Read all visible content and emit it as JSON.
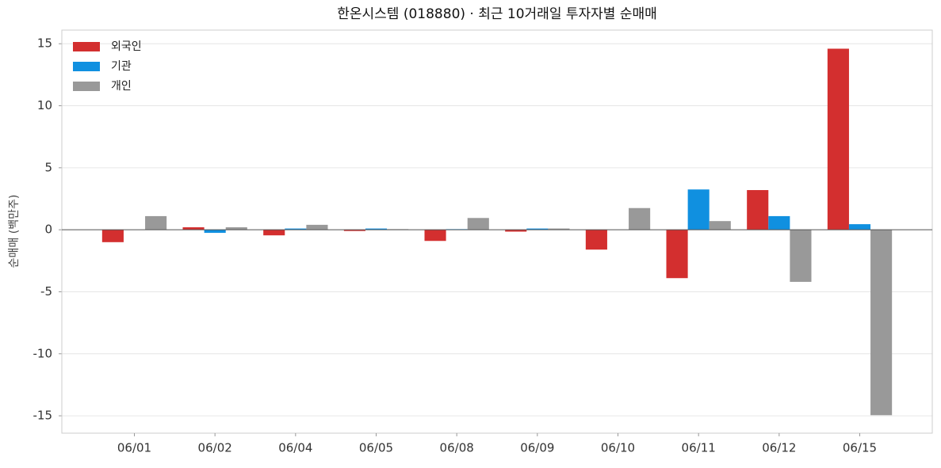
{
  "chart_data": {
    "type": "bar",
    "title": "한온시스템 (018880) · 최근 10거래일 투자자별 순매매",
    "y_label": "순매매 (백만주)",
    "categories": [
      "06/01",
      "06/02",
      "06/04",
      "06/05",
      "06/08",
      "06/09",
      "06/10",
      "06/11",
      "06/12",
      "06/15"
    ],
    "series": [
      {
        "name": "외국인",
        "color": "#d32f2f",
        "values": [
          -1.0,
          0.2,
          -0.45,
          -0.1,
          -0.9,
          -0.15,
          -1.6,
          -3.9,
          3.2,
          14.6
        ]
      },
      {
        "name": "기관",
        "color": "#1090e0",
        "values": [
          0,
          -0.25,
          0.1,
          0.1,
          0.05,
          0.1,
          0,
          3.25,
          1.1,
          0.45
        ]
      },
      {
        "name": "개인",
        "color": "#999999",
        "values": [
          1.1,
          0.2,
          0.4,
          0.05,
          0.95,
          0.1,
          1.75,
          0.7,
          -4.2,
          -14.95
        ]
      }
    ],
    "ylim": [
      -16.4,
      16.1
    ],
    "yticks": [
      -15,
      -10,
      -5,
      0,
      5,
      10,
      15
    ],
    "grid": true,
    "legend": "upper-left"
  }
}
